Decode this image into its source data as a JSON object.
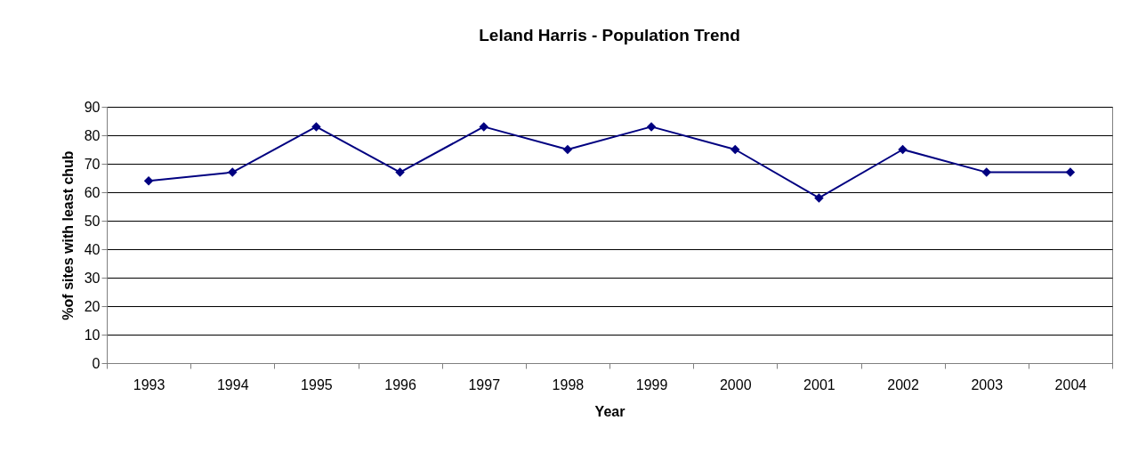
{
  "chart_data": {
    "type": "line",
    "title": "Leland Harris - Population Trend",
    "xlabel": "Year",
    "ylabel": "%of sites with least chub",
    "categories": [
      "1993",
      "1994",
      "1995",
      "1996",
      "1997",
      "1998",
      "1999",
      "2000",
      "2001",
      "2002",
      "2003",
      "2004"
    ],
    "series": [
      {
        "color": "#000080",
        "values": [
          64,
          67,
          83,
          67,
          83,
          75,
          83,
          75,
          58,
          75,
          67,
          67
        ]
      }
    ],
    "ylim": [
      0,
      90
    ],
    "yticks": [
      0,
      10,
      20,
      30,
      40,
      50,
      60,
      70,
      80,
      90
    ],
    "grid": "y",
    "marker": "diamond",
    "line_style": "solid"
  }
}
